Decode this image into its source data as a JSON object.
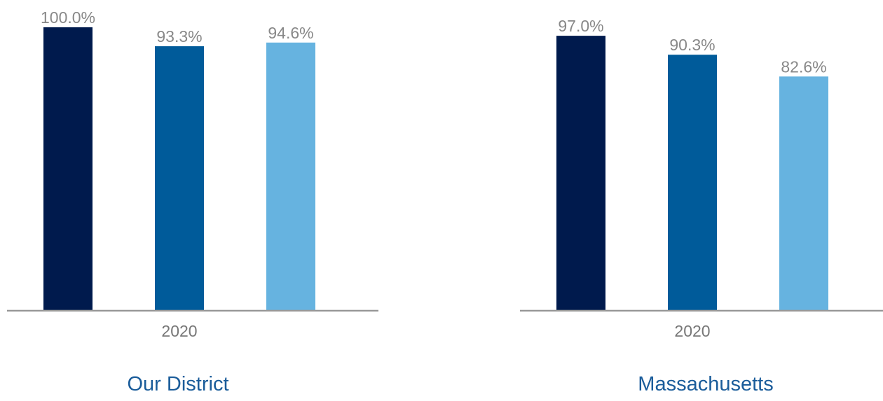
{
  "chart_data": [
    {
      "type": "bar",
      "title": "Our District",
      "categories": [
        "2020"
      ],
      "series": [
        {
          "values": [
            100.0
          ],
          "labels": [
            "100.0%"
          ],
          "color": "#001a4d"
        },
        {
          "values": [
            93.3
          ],
          "labels": [
            "93.3%"
          ],
          "color": "#005b9a"
        },
        {
          "values": [
            94.6
          ],
          "labels": [
            "94.6%"
          ],
          "color": "#66b3e0"
        }
      ],
      "ylim": [
        0,
        100
      ],
      "grid": false,
      "legend": "none",
      "axis_color": "#999999"
    },
    {
      "type": "bar",
      "title": "Massachusetts",
      "categories": [
        "2020"
      ],
      "series": [
        {
          "values": [
            97.0
          ],
          "labels": [
            "97.0%"
          ],
          "color": "#001a4d"
        },
        {
          "values": [
            90.3
          ],
          "labels": [
            "90.3%"
          ],
          "color": "#005b9a"
        },
        {
          "values": [
            82.6
          ],
          "labels": [
            "82.6%"
          ],
          "color": "#66b3e0"
        }
      ],
      "ylim": [
        0,
        100
      ],
      "grid": false,
      "legend": "none",
      "axis_color": "#999999"
    }
  ]
}
